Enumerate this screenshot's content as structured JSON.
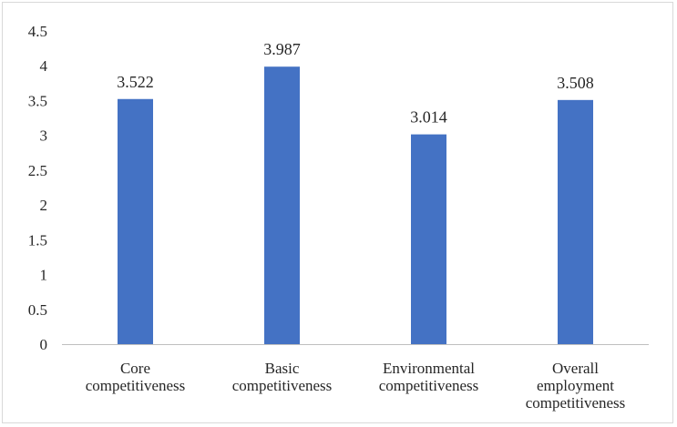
{
  "chart_data": {
    "type": "bar",
    "categories": [
      [
        "Core",
        "competitiveness"
      ],
      [
        "Basic",
        "competitiveness"
      ],
      [
        "Environmental",
        "competitiveness"
      ],
      [
        "Overall",
        "employment",
        "competitiveness"
      ]
    ],
    "values": [
      3.522,
      3.987,
      3.014,
      3.508
    ],
    "data_labels": [
      "3.522",
      "3.987",
      "3.014",
      "3.508"
    ],
    "y_ticks": [
      "0",
      "0.5",
      "1",
      "1.5",
      "2",
      "2.5",
      "3",
      "3.5",
      "4",
      "4.5"
    ],
    "ylim": [
      0,
      4.5
    ],
    "title": "",
    "xlabel": "",
    "ylabel": "",
    "grid": false,
    "legend": "none",
    "bar_color": "#4472c4",
    "axis_color": "#bfbfbf"
  }
}
